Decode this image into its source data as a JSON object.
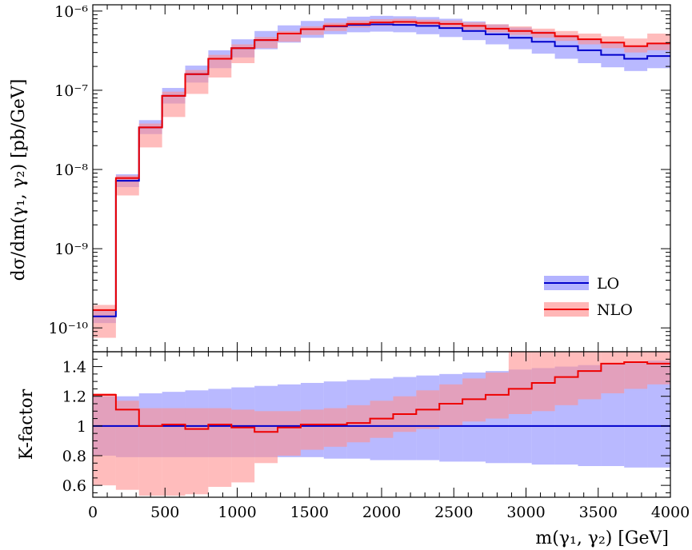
{
  "chart_data": [
    {
      "type": "line",
      "panel": "main",
      "ylabel": "dσ/dm(γ₁, γ₂) [pb/GeV]",
      "xlabel": "",
      "yscale": "log",
      "ylim": [
        5e-11,
        1.2e-06
      ],
      "xlim": [
        0,
        4000
      ],
      "ytick_labels": [
        "10⁻¹⁰",
        "10⁻⁹",
        "10⁻⁸",
        "10⁻⁷",
        "10⁻⁶"
      ],
      "ytick_values": [
        1e-10,
        1e-09,
        1e-08,
        1e-07,
        1e-06
      ],
      "bin_edges": [
        0,
        160,
        320,
        480,
        640,
        800,
        960,
        1120,
        1280,
        1440,
        1600,
        1760,
        1920,
        2080,
        2240,
        2400,
        2560,
        2720,
        2880,
        3040,
        3200,
        3360,
        3520,
        3680,
        3840,
        4000
      ],
      "legend_position": "lower-right",
      "series": [
        {
          "name": "LO",
          "color": "#0000cc",
          "band_color": "#8080ff",
          "values": [
            1.4e-10,
            7.2e-09,
            3.4e-08,
            8.5e-08,
            1.6e-07,
            2.5e-07,
            3.4e-07,
            4.3e-07,
            5.2e-07,
            5.9e-07,
            6.4e-07,
            6.7e-07,
            6.8e-07,
            6.7e-07,
            6.5e-07,
            6.1e-07,
            5.6e-07,
            5.1e-07,
            4.6e-07,
            4.1e-07,
            3.6e-07,
            3.2e-07,
            2.8e-07,
            2.5e-07,
            2.7e-07
          ],
          "band_low": [
            1.15e-10,
            6e-09,
            2.8e-08,
            6.8e-08,
            1.25e-07,
            1.9e-07,
            2.6e-07,
            3.3e-07,
            4e-07,
            4.6e-07,
            5.1e-07,
            5.4e-07,
            5.5e-07,
            5.4e-07,
            5.1e-07,
            4.7e-07,
            4.3e-07,
            3.8e-07,
            3.3e-07,
            2.9e-07,
            2.5e-07,
            2.2e-07,
            1.95e-07,
            1.75e-07,
            1.9e-07
          ],
          "band_high": [
            1.7e-10,
            8.7e-09,
            4.2e-08,
            1.07e-07,
            2.05e-07,
            3.2e-07,
            4.4e-07,
            5.6e-07,
            6.6e-07,
            7.5e-07,
            8.1e-07,
            8.5e-07,
            8.7e-07,
            8.6e-07,
            8.4e-07,
            8e-07,
            7.4e-07,
            6.8e-07,
            6.2e-07,
            5.6e-07,
            5e-07,
            4.5e-07,
            4e-07,
            3.6e-07,
            3.9e-07
          ]
        },
        {
          "name": "NLO",
          "color": "#ee0000",
          "band_color": "#ff9090",
          "values": [
            1.68e-10,
            7.8e-09,
            3.4e-08,
            8.5e-08,
            1.6e-07,
            2.5e-07,
            3.4e-07,
            4.3e-07,
            5.2e-07,
            5.9e-07,
            6.5e-07,
            6.9e-07,
            7.2e-07,
            7.3e-07,
            7.1e-07,
            6.9e-07,
            6.5e-07,
            6e-07,
            5.6e-07,
            5.3e-07,
            4.8e-07,
            4.4e-07,
            4e-07,
            3.6e-07,
            3.9e-07
          ],
          "band_low": [
            7.5e-11,
            4.7e-09,
            1.9e-08,
            4.6e-08,
            9e-08,
            1.45e-07,
            2.2e-07,
            3.4e-07,
            4.1e-07,
            5e-07,
            5.6e-07,
            6.2e-07,
            6.5e-07,
            6.6e-07,
            6.4e-07,
            6.2e-07,
            5.8e-07,
            5.4e-07,
            5e-07,
            4.6e-07,
            4.2e-07,
            3.8e-07,
            3.4e-07,
            3e-07,
            3.2e-07
          ],
          "band_high": [
            1.95e-10,
            8.4e-09,
            3.8e-08,
            9.6e-08,
            1.8e-07,
            2.8e-07,
            3.8e-07,
            4.7e-07,
            5.6e-07,
            6.4e-07,
            7.1e-07,
            7.6e-07,
            7.9e-07,
            8e-07,
            7.8e-07,
            7.6e-07,
            7.2e-07,
            6.8e-07,
            6.4e-07,
            6e-07,
            5.6e-07,
            5.2e-07,
            4.8e-07,
            4.5e-07,
            5.2e-07
          ]
        }
      ]
    },
    {
      "type": "line",
      "panel": "ratio",
      "ylabel": "K-factor",
      "xlabel": "m(γ₁, γ₂) [GeV]",
      "yscale": "linear",
      "ylim": [
        0.52,
        1.5
      ],
      "xlim": [
        0,
        4000
      ],
      "ytick_labels": [
        "0.6",
        "0.8",
        "1",
        "1.2",
        "1.4"
      ],
      "ytick_values": [
        0.6,
        0.8,
        1.0,
        1.2,
        1.4
      ],
      "xtick_labels": [
        "0",
        "500",
        "1000",
        "1500",
        "2000",
        "2500",
        "3000",
        "3500",
        "4000"
      ],
      "xtick_values": [
        0,
        500,
        1000,
        1500,
        2000,
        2500,
        3000,
        3500,
        4000
      ],
      "bin_edges": [
        0,
        160,
        320,
        480,
        640,
        800,
        960,
        1120,
        1280,
        1440,
        1600,
        1760,
        1920,
        2080,
        2240,
        2400,
        2560,
        2720,
        2880,
        3040,
        3200,
        3360,
        3520,
        3680,
        3840,
        4000
      ],
      "series": [
        {
          "name": "LO",
          "color": "#0000cc",
          "band_color": "#8080ff",
          "values": [
            1.0,
            1.0,
            1.0,
            1.0,
            1.0,
            1.0,
            1.0,
            1.0,
            1.0,
            1.0,
            1.0,
            1.0,
            1.0,
            1.0,
            1.0,
            1.0,
            1.0,
            1.0,
            1.0,
            1.0,
            1.0,
            1.0,
            1.0,
            1.0,
            1.0
          ],
          "band_low": [
            0.8,
            0.79,
            0.79,
            0.79,
            0.79,
            0.79,
            0.79,
            0.79,
            0.79,
            0.79,
            0.78,
            0.78,
            0.77,
            0.77,
            0.77,
            0.76,
            0.76,
            0.75,
            0.75,
            0.74,
            0.74,
            0.73,
            0.73,
            0.72,
            0.72
          ],
          "band_high": [
            1.2,
            1.2,
            1.22,
            1.23,
            1.24,
            1.25,
            1.26,
            1.27,
            1.28,
            1.29,
            1.3,
            1.31,
            1.32,
            1.33,
            1.34,
            1.35,
            1.36,
            1.37,
            1.38,
            1.39,
            1.4,
            1.41,
            1.42,
            1.43,
            1.44
          ]
        },
        {
          "name": "NLO",
          "color": "#ee0000",
          "band_color": "#ff9090",
          "values": [
            1.21,
            1.11,
            1.0,
            1.01,
            0.98,
            1.01,
            0.99,
            0.96,
            0.99,
            1.01,
            1.01,
            1.02,
            1.05,
            1.08,
            1.11,
            1.15,
            1.18,
            1.21,
            1.25,
            1.29,
            1.33,
            1.37,
            1.42,
            1.43,
            1.42
          ],
          "band_low": [
            0.6,
            0.57,
            0.53,
            0.53,
            0.54,
            0.59,
            0.62,
            0.75,
            0.8,
            0.84,
            0.86,
            0.89,
            0.92,
            0.96,
            0.98,
            1.0,
            1.03,
            1.05,
            1.08,
            1.1,
            1.14,
            1.18,
            1.22,
            1.25,
            1.28
          ],
          "band_high": [
            1.22,
            1.17,
            1.12,
            1.12,
            1.12,
            1.12,
            1.11,
            1.1,
            1.1,
            1.11,
            1.12,
            1.14,
            1.17,
            1.2,
            1.24,
            1.28,
            1.32,
            1.36,
            1.5,
            1.5,
            1.5,
            1.5,
            1.5,
            1.5,
            1.5
          ]
        }
      ]
    }
  ]
}
